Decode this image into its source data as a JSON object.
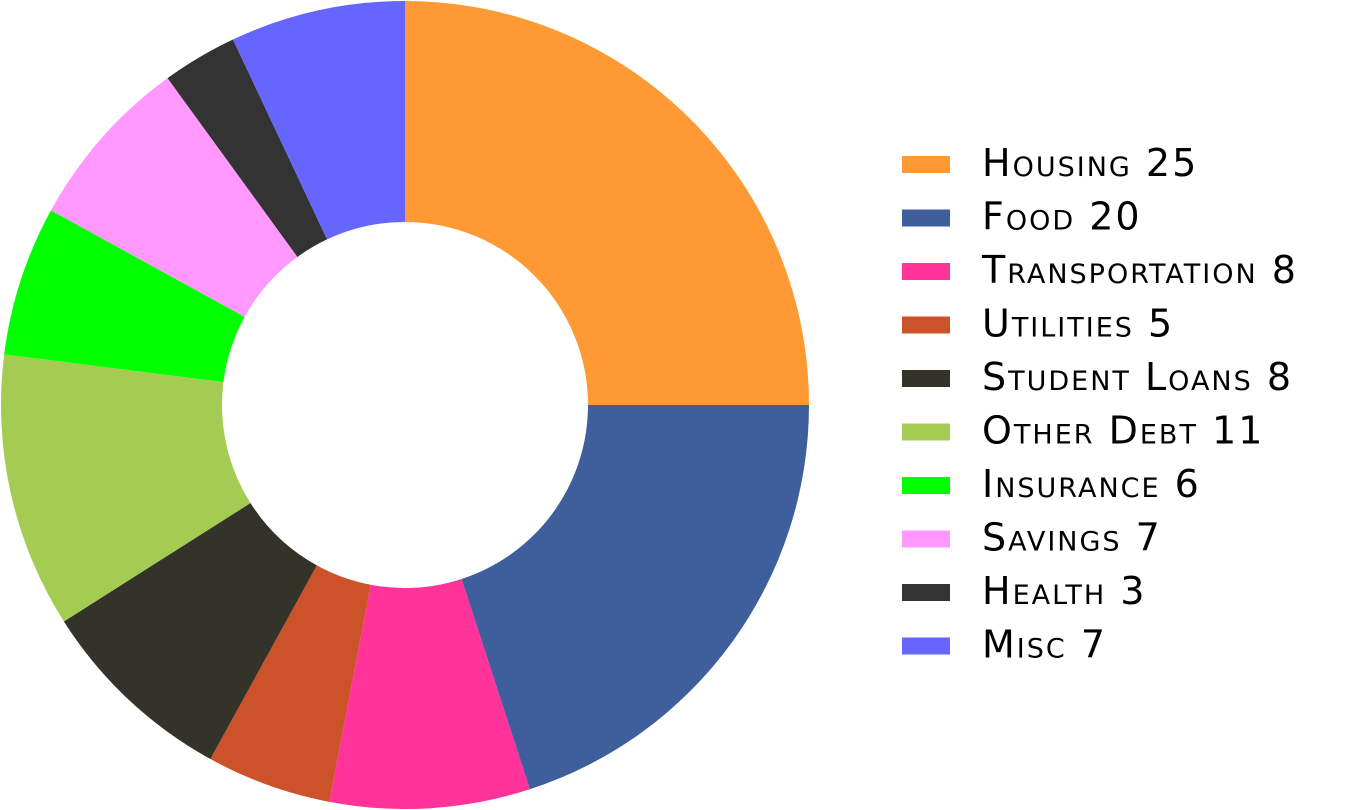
{
  "chart_data": {
    "type": "pie",
    "donut": true,
    "title": "",
    "legend_position": "right",
    "slices": [
      {
        "label": "Housing",
        "value": 25,
        "color": "#FF9933"
      },
      {
        "label": "Food",
        "value": 20,
        "color": "#3E5E9C"
      },
      {
        "label": "Transportation",
        "value": 8,
        "color": "#FF3399"
      },
      {
        "label": "Utilities",
        "value": 5,
        "color": "#CC5229"
      },
      {
        "label": "Student Loans",
        "value": 8,
        "color": "#33332A"
      },
      {
        "label": "Other Debt",
        "value": 11,
        "color": "#A5CC52"
      },
      {
        "label": "Insurance",
        "value": 6,
        "color": "#00FF00"
      },
      {
        "label": "Savings",
        "value": 7,
        "color": "#FF99FF"
      },
      {
        "label": "Health",
        "value": 3,
        "color": "#333333"
      },
      {
        "label": "Misc",
        "value": 7,
        "color": "#6666FF"
      }
    ]
  }
}
